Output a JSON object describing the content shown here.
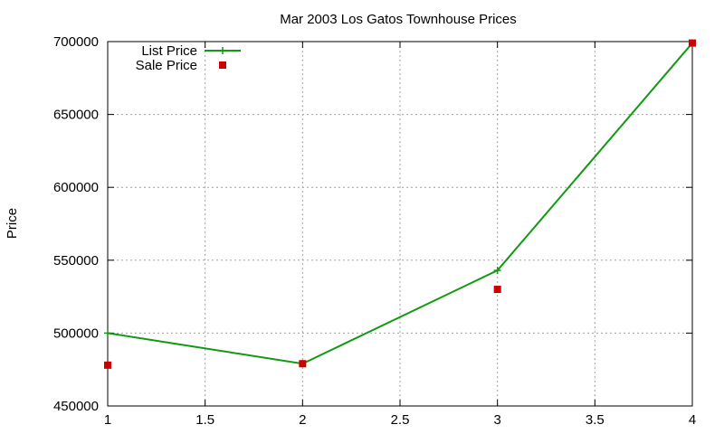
{
  "chart_data": {
    "type": "line",
    "title": "Mar 2003 Los Gatos Townhouse Prices",
    "xlabel": "",
    "ylabel": "Price",
    "xlim": [
      1,
      4
    ],
    "ylim": [
      450000,
      700000
    ],
    "x_ticks": [
      1,
      1.5,
      2,
      2.5,
      3,
      3.5,
      4
    ],
    "y_ticks": [
      450000,
      500000,
      550000,
      600000,
      650000,
      700000
    ],
    "grid": true,
    "legend_position": "top-left",
    "series": [
      {
        "name": "List Price",
        "style": "line+points",
        "marker": "plus",
        "color": "#119911",
        "points": [
          {
            "x": 1,
            "y": 500000
          },
          {
            "x": 2,
            "y": 479000
          },
          {
            "x": 3,
            "y": 543000
          },
          {
            "x": 4,
            "y": 699000
          }
        ]
      },
      {
        "name": "Sale Price",
        "style": "points",
        "marker": "square",
        "color": "#cc0000",
        "points": [
          {
            "x": 1,
            "y": 478000
          },
          {
            "x": 2,
            "y": 479000
          },
          {
            "x": 3,
            "y": 530000
          },
          {
            "x": 4,
            "y": 699000
          }
        ]
      }
    ]
  }
}
